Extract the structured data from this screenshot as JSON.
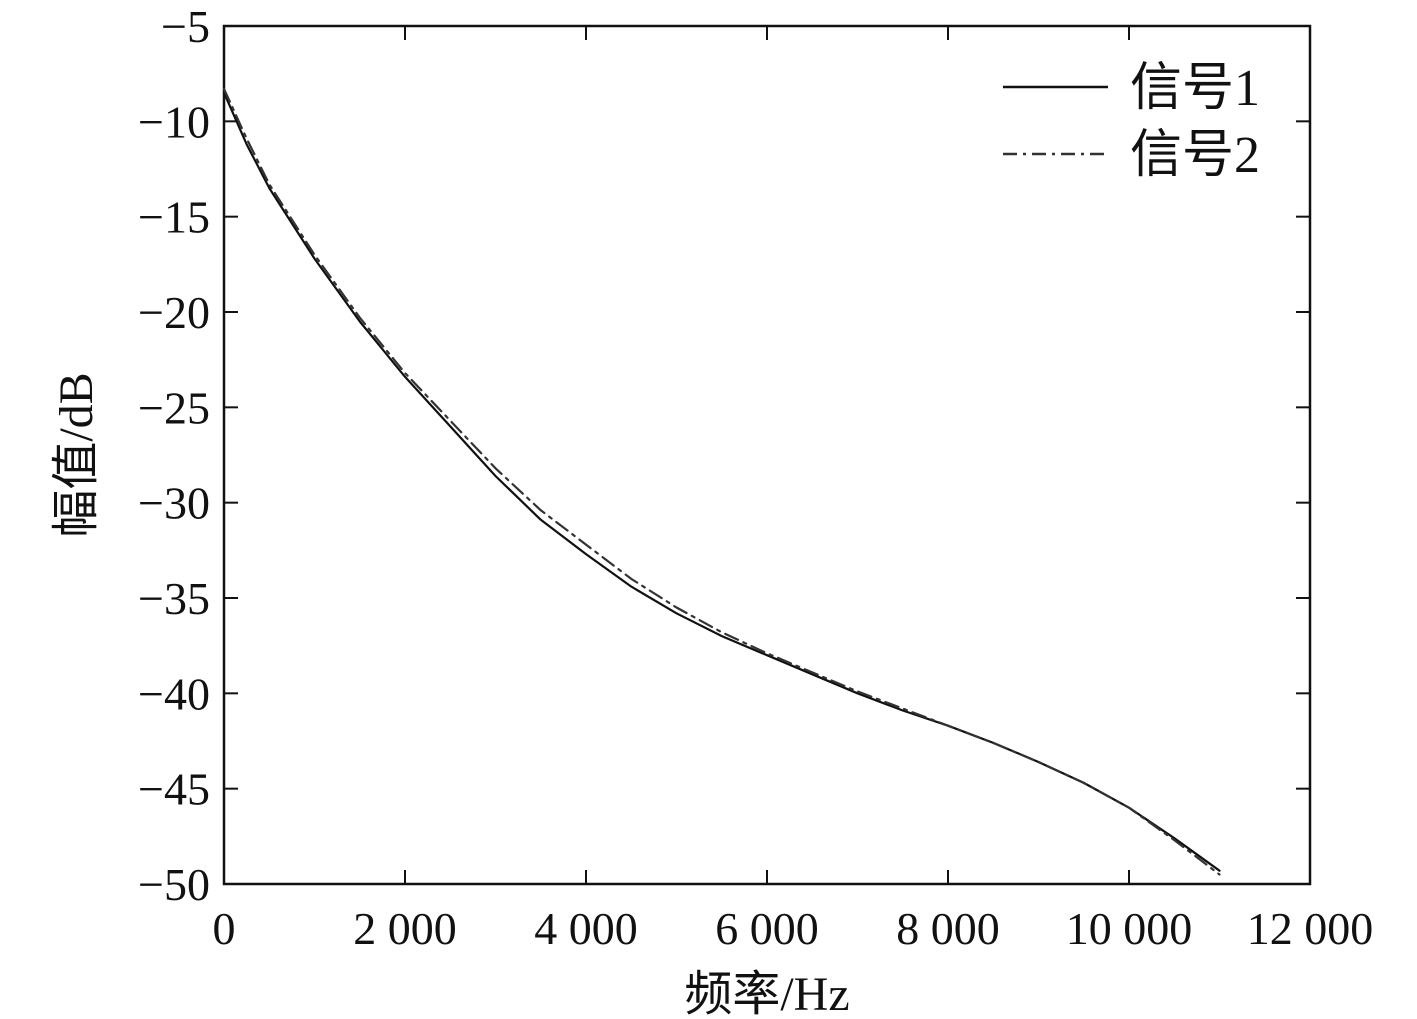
{
  "chart_data": {
    "type": "line",
    "xlabel": "频率/Hz",
    "ylabel": "幅值/dB",
    "xlim": [
      0,
      12000
    ],
    "ylim": [
      -50,
      -5
    ],
    "x_ticks": [
      0,
      2000,
      4000,
      6000,
      8000,
      10000,
      12000
    ],
    "x_tick_labels": [
      "0",
      "2 000",
      "4 000",
      "6 000",
      "8 000",
      "10 000",
      "12 000"
    ],
    "y_ticks": [
      -5,
      -10,
      -15,
      -20,
      -25,
      -30,
      -35,
      -40,
      -45,
      -50
    ],
    "y_tick_labels": [
      "−5",
      "−10",
      "−15",
      "−20",
      "−25",
      "−30",
      "−35",
      "−40",
      "−45",
      "−50"
    ],
    "grid": false,
    "legend_position": "top-right",
    "series": [
      {
        "name": "信号1",
        "style": "solid",
        "color": "#111111",
        "x": [
          0,
          250,
          500,
          1000,
          1500,
          2000,
          2500,
          3000,
          3500,
          4000,
          4500,
          5000,
          5500,
          6000,
          6500,
          7000,
          7500,
          8000,
          8500,
          9000,
          9500,
          10000,
          10500,
          11000
        ],
        "y": [
          -8.5,
          -11.2,
          -13.5,
          -17.2,
          -20.5,
          -23.4,
          -26.0,
          -28.6,
          -30.9,
          -32.7,
          -34.4,
          -35.8,
          -37.0,
          -38.0,
          -39.0,
          -40.0,
          -40.9,
          -41.7,
          -42.6,
          -43.6,
          -44.7,
          -46.0,
          -47.6,
          -49.3
        ]
      },
      {
        "name": "信号2",
        "style": "dashdot",
        "color": "#333333",
        "x": [
          0,
          250,
          500,
          1000,
          1500,
          2000,
          2500,
          3000,
          3500,
          4000,
          4500,
          5000,
          5500,
          6000,
          6500,
          7000,
          7500,
          8000,
          8500,
          9000,
          9500,
          10000,
          10500,
          11000
        ],
        "y": [
          -8.3,
          -10.9,
          -13.3,
          -17.0,
          -20.3,
          -23.2,
          -25.7,
          -28.2,
          -30.4,
          -32.2,
          -34.0,
          -35.5,
          -36.8,
          -37.9,
          -38.9,
          -39.9,
          -40.8,
          -41.7,
          -42.6,
          -43.6,
          -44.7,
          -46.0,
          -47.7,
          -49.5
        ]
      }
    ]
  }
}
